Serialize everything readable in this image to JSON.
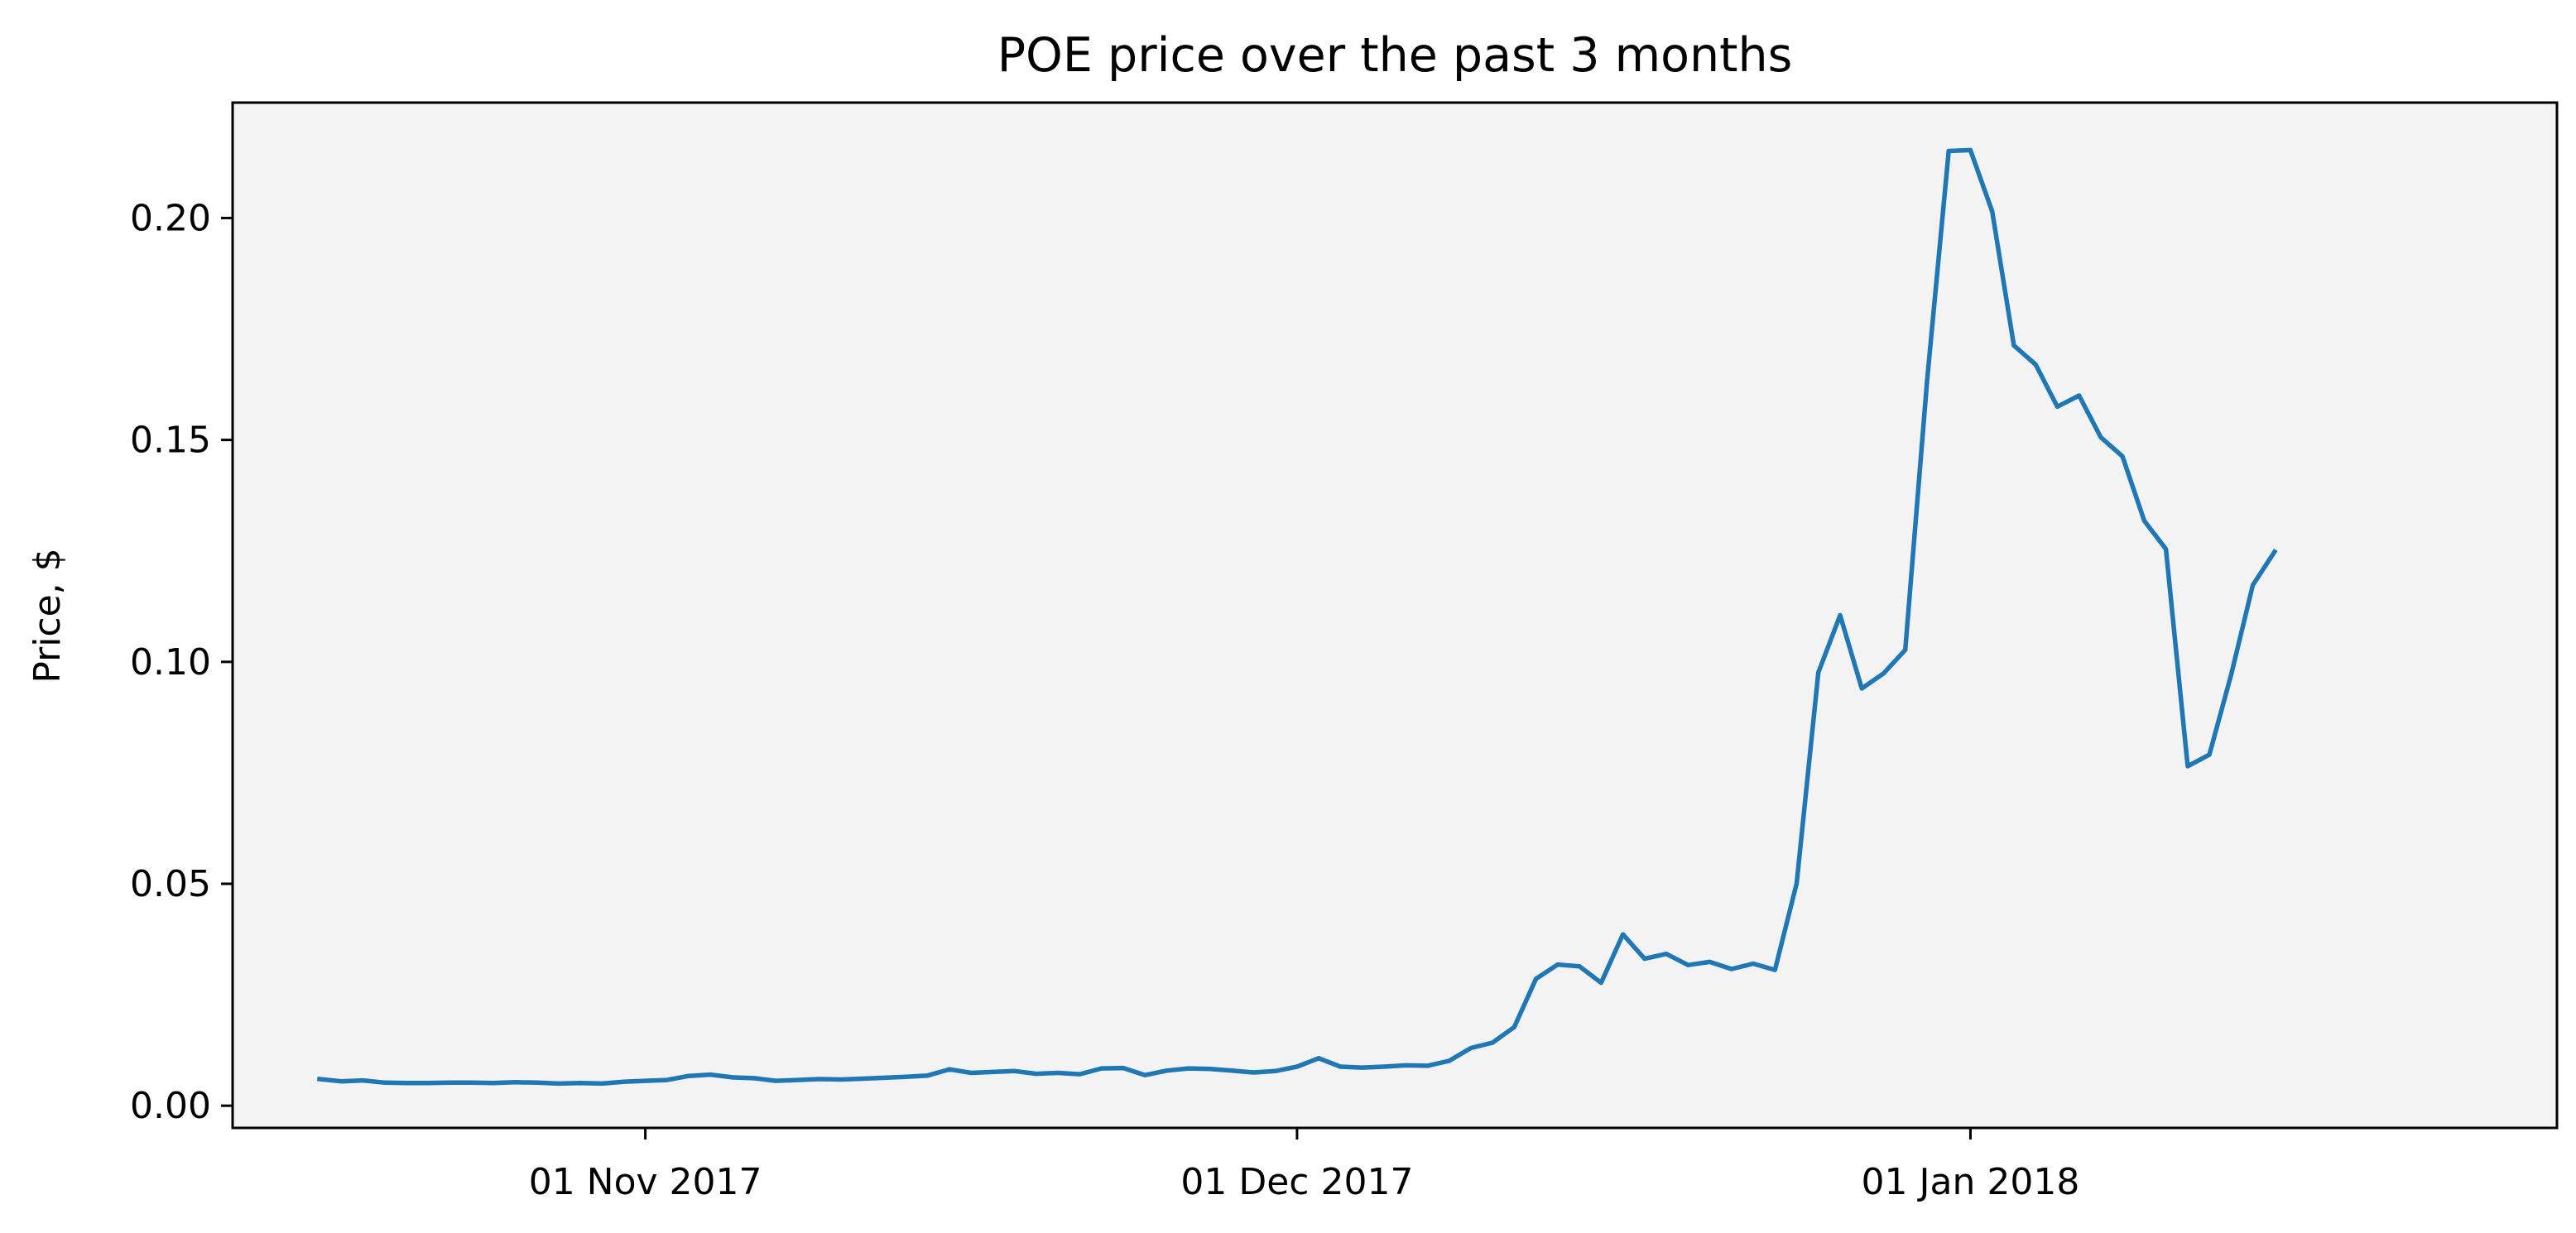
{
  "chart_data": {
    "type": "line",
    "title": "POE price over the past 3 months",
    "xlabel": "",
    "ylabel": "Price, $",
    "x_start": "2017-10-17",
    "x_step_days": 1,
    "xlim": [
      "2017-10-13",
      "2018-01-28"
    ],
    "ylim": [
      -0.005,
      0.226
    ],
    "grid": false,
    "background_color": "#f3f3f4",
    "line_color": "#1f77b4",
    "xticks": [
      {
        "date": "2017-11-01",
        "label": "01 Nov 2017"
      },
      {
        "date": "2017-12-01",
        "label": "01 Dec 2017"
      },
      {
        "date": "2018-01-01",
        "label": "01 Jan 2018"
      }
    ],
    "yticks": [
      {
        "value": 0.0,
        "label": "0.00"
      },
      {
        "value": 0.05,
        "label": "0.05"
      },
      {
        "value": 0.1,
        "label": "0.10"
      },
      {
        "value": 0.15,
        "label": "0.15"
      },
      {
        "value": 0.2,
        "label": "0.20"
      }
    ],
    "series": [
      {
        "name": "POE",
        "values": [
          0.006,
          0.0055,
          0.0057,
          0.0052,
          0.0051,
          0.0051,
          0.0052,
          0.0052,
          0.0051,
          0.0053,
          0.0052,
          0.005,
          0.0051,
          0.005,
          0.0054,
          0.0056,
          0.0058,
          0.0067,
          0.007,
          0.0064,
          0.0062,
          0.0056,
          0.0058,
          0.006,
          0.0059,
          0.0061,
          0.0063,
          0.0065,
          0.0068,
          0.0082,
          0.0074,
          0.0076,
          0.0078,
          0.0072,
          0.0074,
          0.0071,
          0.0084,
          0.0085,
          0.0069,
          0.0079,
          0.0084,
          0.0083,
          0.0079,
          0.0075,
          0.0078,
          0.0088,
          0.0107,
          0.0088,
          0.0086,
          0.0088,
          0.0091,
          0.009,
          0.0101,
          0.013,
          0.0142,
          0.0177,
          0.0286,
          0.0318,
          0.0314,
          0.0277,
          0.0386,
          0.0331,
          0.0342,
          0.0317,
          0.0324,
          0.0308,
          0.032,
          0.0306,
          0.0501,
          0.0976,
          0.1105,
          0.094,
          0.0974,
          0.1027,
          0.1632,
          0.2151,
          0.2153,
          0.2015,
          0.1713,
          0.167,
          0.1575,
          0.16,
          0.1506,
          0.1463,
          0.1318,
          0.1254,
          0.0765,
          0.0791,
          0.0971,
          0.1173,
          0.1248
        ]
      }
    ]
  }
}
